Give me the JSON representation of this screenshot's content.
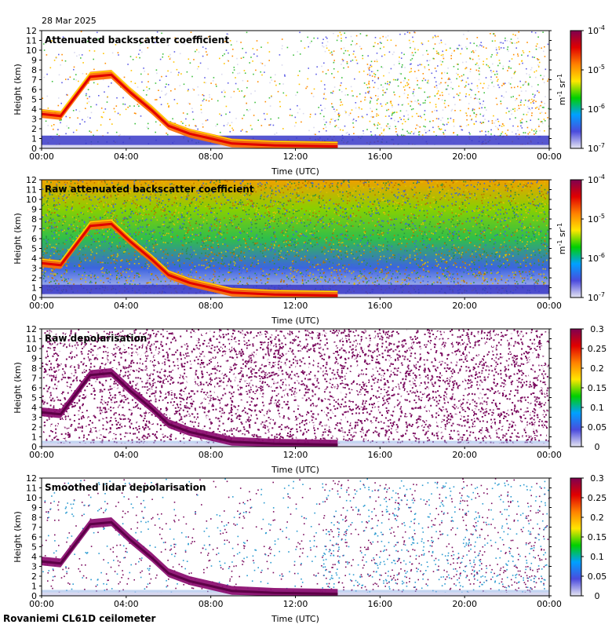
{
  "header": {
    "date": "28 Mar 2025"
  },
  "footer": {
    "instrument": "Rovaniemi CL61D ceilometer"
  },
  "chart_data": [
    {
      "type": "heatmap",
      "title": "Attenuated backscatter coefficient",
      "xlabel": "Time (UTC)",
      "ylabel": "Height (km)",
      "xticks": [
        "00:00",
        "04:00",
        "08:00",
        "12:00",
        "16:00",
        "20:00",
        "00:00"
      ],
      "ylim": [
        0,
        12
      ],
      "yticks": [
        0,
        1,
        2,
        3,
        4,
        5,
        6,
        7,
        8,
        9,
        10,
        11,
        12
      ],
      "colorbar": {
        "scale": "log",
        "ticks": [
          {
            "base": "10",
            "exp": "-4"
          },
          {
            "base": "10",
            "exp": "-5"
          },
          {
            "base": "10",
            "exp": "-6"
          },
          {
            "base": "10",
            "exp": "-7"
          }
        ],
        "unit": {
          "m": "m",
          "m_exp": "-1",
          "sr": "sr",
          "sr_exp": "-1"
        },
        "colors": [
          "#e6e6f2",
          "#4b4bdd",
          "#00a0ff",
          "#00d000",
          "#ffe600",
          "#ff8000",
          "#e00000",
          "#7f0050"
        ]
      },
      "noise_palette": [
        "#d9d9ee",
        "#5e5ee6",
        "#ffc400",
        "#ff8c00",
        "#40c040"
      ]
    },
    {
      "type": "heatmap",
      "title": "Raw attenuated backscatter coefficient",
      "xlabel": "Time (UTC)",
      "ylabel": "Height (km)",
      "xticks": [
        "00:00",
        "04:00",
        "08:00",
        "12:00",
        "16:00",
        "20:00",
        "00:00"
      ],
      "ylim": [
        0,
        12
      ],
      "yticks": [
        0,
        1,
        2,
        3,
        4,
        5,
        6,
        7,
        8,
        9,
        10,
        11,
        12
      ],
      "colorbar": {
        "scale": "log",
        "ticks": [
          {
            "base": "10",
            "exp": "-4"
          },
          {
            "base": "10",
            "exp": "-5"
          },
          {
            "base": "10",
            "exp": "-6"
          },
          {
            "base": "10",
            "exp": "-7"
          }
        ],
        "unit": {
          "m": "m",
          "m_exp": "-1",
          "sr": "sr",
          "sr_exp": "-1"
        },
        "colors": [
          "#e6e6f2",
          "#4b4bdd",
          "#00a0ff",
          "#00d000",
          "#ffe600",
          "#ff8000",
          "#e00000",
          "#7f0050"
        ]
      },
      "background_gradient": [
        "#d8d8ee",
        "#3c64e0",
        "#2fbf4a",
        "#88d000",
        "#f0a000"
      ]
    },
    {
      "type": "heatmap",
      "title": "Raw depolarisation",
      "xlabel": "Time (UTC)",
      "ylabel": "Height (km)",
      "xticks": [
        "00:00",
        "04:00",
        "08:00",
        "12:00",
        "16:00",
        "20:00",
        "00:00"
      ],
      "ylim": [
        0,
        12
      ],
      "yticks": [
        0,
        1,
        2,
        3,
        4,
        5,
        6,
        7,
        8,
        9,
        10,
        11,
        12
      ],
      "colorbar": {
        "scale": "linear",
        "ticks": [
          "0.3",
          "0.25",
          "0.2",
          "0.15",
          "0.1",
          "0.05",
          "0"
        ],
        "colors": [
          "#e6e6f2",
          "#4b4bdd",
          "#00a0ff",
          "#00d000",
          "#ffe600",
          "#ff8000",
          "#e00000",
          "#7f0050"
        ]
      },
      "noise_palette": [
        "#7a0a5e",
        "#ffffff"
      ]
    },
    {
      "type": "heatmap",
      "title": "Smoothed lidar depolarisation",
      "xlabel": "Time (UTC)",
      "ylabel": "Height (km)",
      "xticks": [
        "00:00",
        "04:00",
        "08:00",
        "12:00",
        "16:00",
        "20:00",
        "00:00"
      ],
      "ylim": [
        0,
        12
      ],
      "yticks": [
        0,
        1,
        2,
        3,
        4,
        5,
        6,
        7,
        8,
        9,
        10,
        11,
        12
      ],
      "colorbar": {
        "scale": "linear",
        "ticks": [
          "0.3",
          "0.25",
          "0.2",
          "0.15",
          "0.1",
          "0.05",
          "0"
        ],
        "colors": [
          "#e6e6f2",
          "#4b4bdd",
          "#00a0ff",
          "#00d000",
          "#ffe600",
          "#ff8000",
          "#e00000",
          "#7f0050"
        ]
      },
      "noise_palette": [
        "#7a0a5e",
        "#2a9ad0"
      ]
    }
  ]
}
